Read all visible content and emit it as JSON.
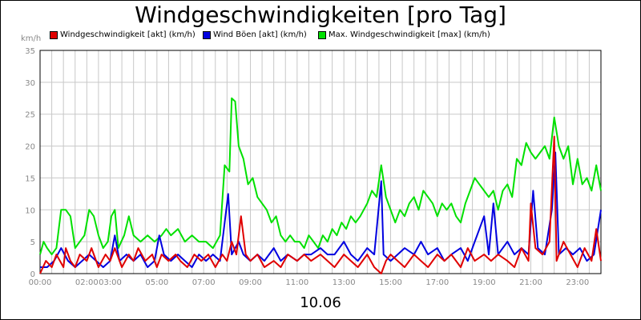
{
  "chart_data": {
    "type": "line",
    "title": "Windgeschwindigkeiten [pro Tag]",
    "unit": "km/h",
    "xlabel": "10.06",
    "x_ticks": [
      "00:00",
      "02:00",
      "03:00",
      "05:00",
      "07:00",
      "09:00",
      "11:00",
      "13:00",
      "15:00",
      "17:00",
      "19:00",
      "21:00",
      "23:00"
    ],
    "x_tick_hours": [
      0,
      2,
      3,
      5,
      7,
      9,
      11,
      13,
      15,
      17,
      19,
      21,
      23
    ],
    "xlim_hours": [
      0,
      24
    ],
    "ylim": [
      0,
      35
    ],
    "y_ticks": [
      0,
      5,
      10,
      15,
      20,
      25,
      30,
      35
    ],
    "grid": true,
    "legend": "top",
    "series": [
      {
        "name": "Windgeschwindigkeit [akt] (km/h)",
        "color": "#e00000",
        "points": [
          [
            0,
            0
          ],
          [
            0.25,
            2
          ],
          [
            0.5,
            1
          ],
          [
            0.7,
            3
          ],
          [
            1,
            1
          ],
          [
            1.1,
            4
          ],
          [
            1.3,
            2
          ],
          [
            1.5,
            1
          ],
          [
            1.7,
            3
          ],
          [
            2,
            2
          ],
          [
            2.2,
            4
          ],
          [
            2.5,
            1
          ],
          [
            2.8,
            3
          ],
          [
            3,
            2
          ],
          [
            3.2,
            4
          ],
          [
            3.5,
            1
          ],
          [
            3.8,
            3
          ],
          [
            4,
            2
          ],
          [
            4.2,
            4
          ],
          [
            4.5,
            2
          ],
          [
            4.8,
            3
          ],
          [
            5,
            1
          ],
          [
            5.2,
            3
          ],
          [
            5.5,
            2
          ],
          [
            5.8,
            3
          ],
          [
            6,
            2
          ],
          [
            6.3,
            1
          ],
          [
            6.6,
            3
          ],
          [
            6.9,
            2
          ],
          [
            7.2,
            3
          ],
          [
            7.5,
            1
          ],
          [
            7.8,
            3
          ],
          [
            8,
            2
          ],
          [
            8.2,
            5
          ],
          [
            8.4,
            3
          ],
          [
            8.6,
            9
          ],
          [
            8.8,
            3
          ],
          [
            9,
            2
          ],
          [
            9.3,
            3
          ],
          [
            9.6,
            1
          ],
          [
            10,
            2
          ],
          [
            10.3,
            1
          ],
          [
            10.6,
            3
          ],
          [
            11,
            2
          ],
          [
            11.3,
            3
          ],
          [
            11.6,
            2
          ],
          [
            12,
            3
          ],
          [
            12.3,
            2
          ],
          [
            12.6,
            1
          ],
          [
            13,
            3
          ],
          [
            13.3,
            2
          ],
          [
            13.6,
            1
          ],
          [
            14,
            3
          ],
          [
            14.3,
            1
          ],
          [
            14.6,
            0
          ],
          [
            14.8,
            2
          ],
          [
            15,
            3
          ],
          [
            15.3,
            2
          ],
          [
            15.6,
            1
          ],
          [
            16,
            3
          ],
          [
            16.3,
            2
          ],
          [
            16.6,
            1
          ],
          [
            17,
            3
          ],
          [
            17.3,
            2
          ],
          [
            17.6,
            3
          ],
          [
            18,
            1
          ],
          [
            18.3,
            4
          ],
          [
            18.6,
            2
          ],
          [
            19,
            3
          ],
          [
            19.3,
            2
          ],
          [
            19.6,
            3
          ],
          [
            20,
            2
          ],
          [
            20.3,
            1
          ],
          [
            20.6,
            4
          ],
          [
            20.9,
            2
          ],
          [
            21,
            11
          ],
          [
            21.2,
            4
          ],
          [
            21.5,
            3
          ],
          [
            21.8,
            5
          ],
          [
            22,
            21.5
          ],
          [
            22.1,
            2
          ],
          [
            22.4,
            5
          ],
          [
            22.7,
            3
          ],
          [
            23,
            1
          ],
          [
            23.3,
            4
          ],
          [
            23.6,
            2
          ],
          [
            23.8,
            7
          ],
          [
            24,
            2
          ]
        ]
      },
      {
        "name": "Wind Böen [akt] (km/h)",
        "color": "#0000e0",
        "points": [
          [
            0,
            1
          ],
          [
            0.3,
            1
          ],
          [
            0.6,
            2
          ],
          [
            0.9,
            4
          ],
          [
            1.2,
            2
          ],
          [
            1.5,
            1
          ],
          [
            1.8,
            2
          ],
          [
            2.1,
            3
          ],
          [
            2.4,
            2
          ],
          [
            2.7,
            1
          ],
          [
            3,
            2
          ],
          [
            3.2,
            6
          ],
          [
            3.4,
            2
          ],
          [
            3.7,
            3
          ],
          [
            4,
            2
          ],
          [
            4.3,
            3
          ],
          [
            4.6,
            1
          ],
          [
            4.9,
            2
          ],
          [
            5.1,
            6
          ],
          [
            5.3,
            3
          ],
          [
            5.6,
            2
          ],
          [
            5.9,
            3
          ],
          [
            6.2,
            2
          ],
          [
            6.5,
            1
          ],
          [
            6.8,
            3
          ],
          [
            7.1,
            2
          ],
          [
            7.4,
            3
          ],
          [
            7.7,
            2
          ],
          [
            7.9,
            8
          ],
          [
            8.05,
            12.5
          ],
          [
            8.2,
            3
          ],
          [
            8.5,
            5
          ],
          [
            8.7,
            3
          ],
          [
            9,
            2
          ],
          [
            9.3,
            3
          ],
          [
            9.6,
            2
          ],
          [
            10,
            4
          ],
          [
            10.3,
            2
          ],
          [
            10.6,
            3
          ],
          [
            11,
            2
          ],
          [
            11.3,
            3
          ],
          [
            11.6,
            3
          ],
          [
            12,
            4
          ],
          [
            12.3,
            3
          ],
          [
            12.6,
            3
          ],
          [
            13,
            5
          ],
          [
            13.3,
            3
          ],
          [
            13.6,
            2
          ],
          [
            14,
            4
          ],
          [
            14.3,
            3
          ],
          [
            14.6,
            14.5
          ],
          [
            14.7,
            3
          ],
          [
            15,
            2
          ],
          [
            15.3,
            3
          ],
          [
            15.6,
            4
          ],
          [
            16,
            3
          ],
          [
            16.3,
            5
          ],
          [
            16.6,
            3
          ],
          [
            17,
            4
          ],
          [
            17.3,
            2
          ],
          [
            17.6,
            3
          ],
          [
            18,
            4
          ],
          [
            18.3,
            2
          ],
          [
            18.6,
            5
          ],
          [
            19,
            9
          ],
          [
            19.2,
            3
          ],
          [
            19.4,
            11
          ],
          [
            19.6,
            3
          ],
          [
            20,
            5
          ],
          [
            20.3,
            3
          ],
          [
            20.6,
            4
          ],
          [
            20.9,
            3
          ],
          [
            21.1,
            13
          ],
          [
            21.3,
            4
          ],
          [
            21.6,
            3
          ],
          [
            21.9,
            10
          ],
          [
            22.05,
            19
          ],
          [
            22.2,
            3
          ],
          [
            22.5,
            4
          ],
          [
            22.8,
            3
          ],
          [
            23.1,
            4
          ],
          [
            23.4,
            2
          ],
          [
            23.7,
            3
          ],
          [
            24,
            10
          ]
        ]
      },
      {
        "name": "Max. Windgeschwindigkeit [max] (km/h)",
        "color": "#00e000",
        "points": [
          [
            0,
            3
          ],
          [
            0.15,
            5
          ],
          [
            0.3,
            4
          ],
          [
            0.5,
            3
          ],
          [
            0.7,
            4
          ],
          [
            0.9,
            10
          ],
          [
            1.1,
            10
          ],
          [
            1.3,
            9
          ],
          [
            1.5,
            4
          ],
          [
            1.7,
            5
          ],
          [
            1.9,
            6
          ],
          [
            2.1,
            10
          ],
          [
            2.3,
            9
          ],
          [
            2.5,
            6
          ],
          [
            2.7,
            4
          ],
          [
            2.9,
            5
          ],
          [
            3.05,
            9
          ],
          [
            3.2,
            10
          ],
          [
            3.35,
            4
          ],
          [
            3.6,
            6
          ],
          [
            3.8,
            9
          ],
          [
            4,
            6
          ],
          [
            4.3,
            5
          ],
          [
            4.6,
            6
          ],
          [
            4.9,
            5
          ],
          [
            5.2,
            6
          ],
          [
            5.4,
            7
          ],
          [
            5.6,
            6
          ],
          [
            5.9,
            7
          ],
          [
            6.2,
            5
          ],
          [
            6.5,
            6
          ],
          [
            6.8,
            5
          ],
          [
            7.1,
            5
          ],
          [
            7.4,
            4
          ],
          [
            7.7,
            6
          ],
          [
            7.9,
            17
          ],
          [
            8.1,
            16
          ],
          [
            8.2,
            27.5
          ],
          [
            8.35,
            27
          ],
          [
            8.5,
            20
          ],
          [
            8.7,
            18
          ],
          [
            8.9,
            14
          ],
          [
            9.1,
            15
          ],
          [
            9.3,
            12
          ],
          [
            9.5,
            11
          ],
          [
            9.7,
            10
          ],
          [
            9.9,
            8
          ],
          [
            10.1,
            9
          ],
          [
            10.3,
            6
          ],
          [
            10.5,
            5
          ],
          [
            10.7,
            6
          ],
          [
            10.9,
            5
          ],
          [
            11.1,
            5
          ],
          [
            11.3,
            4
          ],
          [
            11.5,
            6
          ],
          [
            11.7,
            5
          ],
          [
            11.9,
            4
          ],
          [
            12.1,
            6
          ],
          [
            12.3,
            5
          ],
          [
            12.5,
            7
          ],
          [
            12.7,
            6
          ],
          [
            12.9,
            8
          ],
          [
            13.1,
            7
          ],
          [
            13.3,
            9
          ],
          [
            13.5,
            8
          ],
          [
            13.7,
            9
          ],
          [
            14,
            11
          ],
          [
            14.2,
            13
          ],
          [
            14.4,
            12
          ],
          [
            14.6,
            17
          ],
          [
            14.8,
            12
          ],
          [
            15,
            10
          ],
          [
            15.2,
            8
          ],
          [
            15.4,
            10
          ],
          [
            15.6,
            9
          ],
          [
            15.8,
            11
          ],
          [
            16,
            12
          ],
          [
            16.2,
            10
          ],
          [
            16.4,
            13
          ],
          [
            16.6,
            12
          ],
          [
            16.8,
            11
          ],
          [
            17,
            9
          ],
          [
            17.2,
            11
          ],
          [
            17.4,
            10
          ],
          [
            17.6,
            11
          ],
          [
            17.8,
            9
          ],
          [
            18,
            8
          ],
          [
            18.2,
            11
          ],
          [
            18.4,
            13
          ],
          [
            18.6,
            15
          ],
          [
            18.8,
            14
          ],
          [
            19,
            13
          ],
          [
            19.2,
            12
          ],
          [
            19.4,
            13
          ],
          [
            19.6,
            10
          ],
          [
            19.8,
            13
          ],
          [
            20,
            14
          ],
          [
            20.2,
            12
          ],
          [
            20.4,
            18
          ],
          [
            20.6,
            17
          ],
          [
            20.8,
            20.5
          ],
          [
            21,
            19
          ],
          [
            21.2,
            18
          ],
          [
            21.4,
            19
          ],
          [
            21.6,
            20
          ],
          [
            21.8,
            18
          ],
          [
            22,
            24.5
          ],
          [
            22.2,
            20
          ],
          [
            22.4,
            18
          ],
          [
            22.6,
            20
          ],
          [
            22.8,
            14
          ],
          [
            23,
            18
          ],
          [
            23.2,
            14
          ],
          [
            23.4,
            15
          ],
          [
            23.6,
            13
          ],
          [
            23.8,
            17
          ],
          [
            24,
            13
          ]
        ]
      }
    ]
  }
}
